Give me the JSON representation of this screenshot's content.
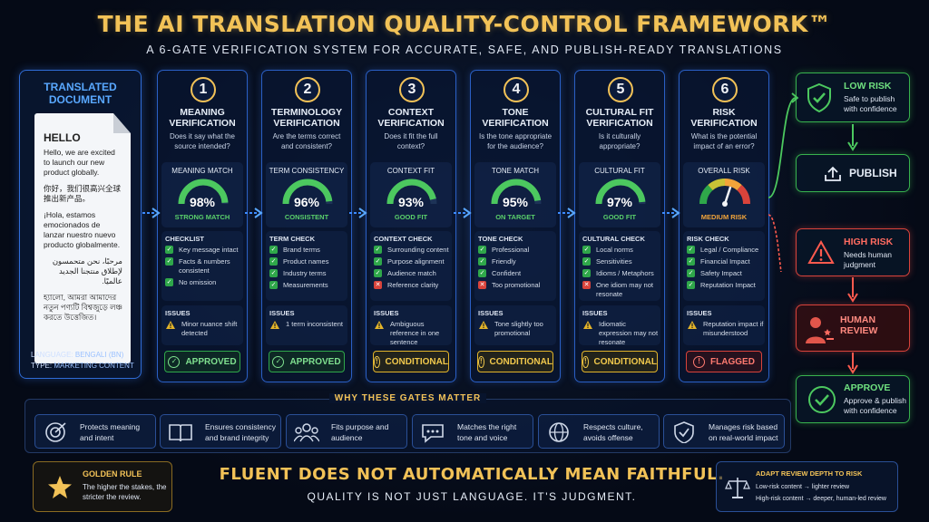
{
  "header": {
    "title": "THE AI TRANSLATION QUALITY-CONTROL FRAMEWORK™",
    "subtitle": "A 6-GATE VERIFICATION SYSTEM FOR ACCURATE, SAFE, AND PUBLISH-READY TRANSLATIONS"
  },
  "document": {
    "title": "TRANSLATED DOCUMENT",
    "hello": "HELLO",
    "en": "Hello, we are excited to launch our new product globally.",
    "zh": "你好，我们很高兴全球推出新产品。",
    "es": "¡Hola, estamos emocionados de lanzar nuestro nuevo producto globalmente.",
    "ar": "مرحبًا، نحن متحمسون لإطلاق منتجنا الجديد عالميًا.",
    "bn": "হ্যালো, আমরা আমাদের নতুন পণ্যটি বিশ্বজুড়ে লঞ্চ করতে উত্তেজিত।",
    "language_label": "LANGUAGE:",
    "language": "BENGALI (BN)",
    "type_label": "TYPE:",
    "type": "MARKETING CONTENT"
  },
  "gates": [
    {
      "num": "1",
      "name": "MEANING VERIFICATION",
      "question": "Does it say what the source intended?",
      "metric_label": "MEANING MATCH",
      "percent": "98%",
      "value": 0.98,
      "metric_status": "STRONG MATCH",
      "check_title": "CHECKLIST",
      "checks": [
        {
          "text": "Key message intact",
          "ok": true
        },
        {
          "text": "Facts & numbers consistent",
          "ok": true
        },
        {
          "text": "No omission",
          "ok": true
        }
      ],
      "issues_title": "ISSUES",
      "issue": "Minor nuance shift detected",
      "issue_kind": "warn",
      "status": "APPROVED",
      "status_kind": "green"
    },
    {
      "num": "2",
      "name": "TERMINOLOGY VERIFICATION",
      "question": "Are the terms correct and consistent?",
      "metric_label": "TERM CONSISTENCY",
      "percent": "96%",
      "value": 0.96,
      "metric_status": "CONSISTENT",
      "check_title": "TERM CHECK",
      "checks": [
        {
          "text": "Brand terms",
          "ok": true
        },
        {
          "text": "Product names",
          "ok": true
        },
        {
          "text": "Industry terms",
          "ok": true
        },
        {
          "text": "Measurements",
          "ok": true
        }
      ],
      "issues_title": "ISSUES",
      "issue": "1 term inconsistent",
      "issue_kind": "warn",
      "status": "APPROVED",
      "status_kind": "green"
    },
    {
      "num": "3",
      "name": "CONTEXT VERIFICATION",
      "question": "Does it fit the full context?",
      "metric_label": "CONTEXT FIT",
      "percent": "93%",
      "value": 0.93,
      "metric_status": "GOOD FIT",
      "check_title": "CONTEXT CHECK",
      "checks": [
        {
          "text": "Surrounding content",
          "ok": true
        },
        {
          "text": "Purpose alignment",
          "ok": true
        },
        {
          "text": "Audience match",
          "ok": true
        },
        {
          "text": "Reference clarity",
          "ok": false
        }
      ],
      "issues_title": "ISSUES",
      "issue": "Ambiguous reference in one sentence",
      "issue_kind": "warn",
      "status": "CONDITIONAL",
      "status_kind": "yellow"
    },
    {
      "num": "4",
      "name": "TONE VERIFICATION",
      "question": "Is the tone appropriate for the audience?",
      "metric_label": "TONE MATCH",
      "percent": "95%",
      "value": 0.95,
      "metric_status": "ON TARGET",
      "check_title": "TONE CHECK",
      "checks": [
        {
          "text": "Professional",
          "ok": true
        },
        {
          "text": "Friendly",
          "ok": true
        },
        {
          "text": "Confident",
          "ok": true
        },
        {
          "text": "Too promotional",
          "ok": false
        }
      ],
      "issues_title": "ISSUES",
      "issue": "Tone slightly too promotional",
      "issue_kind": "warn",
      "status": "CONDITIONAL",
      "status_kind": "yellow"
    },
    {
      "num": "5",
      "name": "CULTURAL FIT VERIFICATION",
      "question": "Is it culturally appropriate?",
      "metric_label": "CULTURAL FIT",
      "percent": "97%",
      "value": 0.97,
      "metric_status": "GOOD FIT",
      "check_title": "CULTURAL CHECK",
      "checks": [
        {
          "text": "Local norms",
          "ok": true
        },
        {
          "text": "Sensitivities",
          "ok": true
        },
        {
          "text": "Idioms / Metaphors",
          "ok": true
        },
        {
          "text": "One idiom may not resonate",
          "ok": false
        }
      ],
      "issues_title": "ISSUES",
      "issue": "Idiomatic expression may not resonate",
      "issue_kind": "warn",
      "status": "CONDITIONAL",
      "status_kind": "yellow"
    },
    {
      "num": "6",
      "name": "RISK VERIFICATION",
      "question": "What is the potential impact of an error?",
      "metric_label": "OVERALL RISK",
      "percent": "",
      "value": 0.6,
      "metric_status": "MEDIUM RISK",
      "check_title": "RISK CHECK",
      "checks": [
        {
          "text": "Legal / Compliance",
          "ok": true
        },
        {
          "text": "Financial Impact",
          "ok": true
        },
        {
          "text": "Safety Impact",
          "ok": true
        },
        {
          "text": "Reputation Impact",
          "ok": true
        }
      ],
      "issues_title": "ISSUES",
      "issue": "Reputation impact if misunderstood",
      "issue_kind": "warn",
      "status": "FLAGGED",
      "status_kind": "red"
    }
  ],
  "outcomes": {
    "low_risk": {
      "title": "LOW RISK",
      "sub": "Safe to publish with confidence"
    },
    "publish": {
      "title": "PUBLISH"
    },
    "high_risk": {
      "title": "HIGH RISK",
      "sub": "Needs human judgment"
    },
    "human_review": {
      "title": "HUMAN REVIEW"
    },
    "approve": {
      "title": "APPROVE",
      "sub": "Approve & publish with confidence"
    }
  },
  "why": {
    "title": "WHY THESE GATES MATTER",
    "items": [
      {
        "icon": "target-icon",
        "text": "Protects meaning and intent"
      },
      {
        "icon": "book-icon",
        "text": "Ensures consistency and brand integrity"
      },
      {
        "icon": "people-icon",
        "text": "Fits purpose and audience"
      },
      {
        "icon": "chat-icon",
        "text": "Matches the right tone and voice"
      },
      {
        "icon": "globe-icon",
        "text": "Respects culture, avoids offense"
      },
      {
        "icon": "shield-check-icon",
        "text": "Manages risk based on real-world impact"
      }
    ]
  },
  "golden": {
    "title": "GOLDEN RULE",
    "text": "The higher the stakes, the stricter the review."
  },
  "slogan": {
    "line1": "FLUENT DOES NOT AUTOMATICALLY MEAN FAITHFUL.",
    "line2": "QUALITY IS NOT JUST LANGUAGE. IT'S JUDGMENT."
  },
  "adapt": {
    "title": "ADAPT REVIEW DEPTH TO RISK",
    "low": "Low-risk content → lighter review",
    "high": "High-risk content → deeper, human-led review"
  },
  "colors": {
    "gold": "#f2c257",
    "blue": "#2a5fc4",
    "green": "#38b24e",
    "yellow": "#e2b42a",
    "red": "#d9433b"
  }
}
